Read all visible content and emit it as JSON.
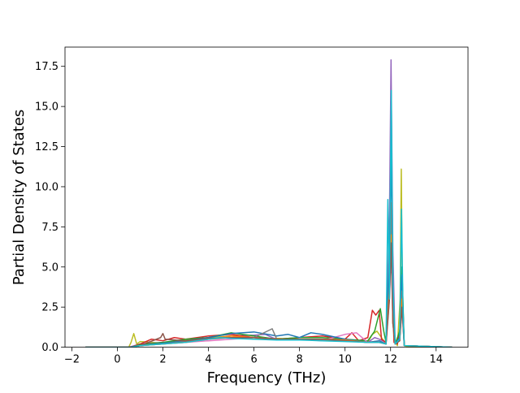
{
  "chart_data": {
    "type": "line",
    "title": "",
    "xlabel": "Frequency (THz)",
    "ylabel": "Partial Density of States",
    "xlim": [
      -2.3,
      15.4
    ],
    "ylim": [
      0,
      18.7
    ],
    "xticks": [
      -2,
      0,
      2,
      4,
      6,
      8,
      10,
      12,
      14
    ],
    "xtick_labels": [
      "−2",
      "0",
      "2",
      "4",
      "6",
      "8",
      "10",
      "12",
      "14"
    ],
    "yticks": [
      0,
      2.5,
      5,
      7.5,
      10,
      12.5,
      15,
      17.5
    ],
    "ytick_labels": [
      "0.0",
      "2.5",
      "5.0",
      "7.5",
      "10.0",
      "12.5",
      "15.0",
      "17.5"
    ],
    "grid": false,
    "legend": "none",
    "x_range_plotted": [
      -1.4,
      14.7
    ],
    "series": [
      {
        "color": "#bcbd22",
        "x": [
          -1.4,
          0.5,
          0.6,
          0.72,
          0.85,
          1.0,
          1.5,
          2.0,
          3.0,
          4.0,
          5.0,
          6.0,
          7.0,
          8.0,
          9.0,
          10.0,
          11.0,
          11.2,
          11.4,
          11.8,
          11.95,
          12.05,
          12.15,
          12.3,
          12.42,
          12.47,
          12.52,
          12.6,
          12.8,
          14.7
        ],
        "y": [
          0,
          0,
          0.3,
          0.85,
          0.2,
          0.35,
          0.3,
          0.25,
          0.45,
          0.6,
          0.7,
          0.5,
          0.55,
          0.5,
          0.45,
          0.4,
          0.3,
          0.8,
          1.0,
          0.2,
          4.5,
          5.0,
          0.4,
          0.1,
          3.0,
          11.1,
          3.0,
          0.1,
          0,
          0
        ]
      },
      {
        "color": "#9467bd",
        "x": [
          -1.4,
          0.5,
          1.0,
          2.0,
          3.0,
          4.0,
          5.0,
          6.0,
          6.5,
          6.8,
          7.0,
          8.0,
          9.0,
          10.0,
          11.0,
          11.3,
          11.5,
          11.8,
          11.95,
          12.02,
          12.1,
          12.2,
          12.4,
          12.5,
          12.6,
          14.7
        ],
        "y": [
          0,
          0,
          0.2,
          0.3,
          0.4,
          0.5,
          0.7,
          0.75,
          0.8,
          0.6,
          0.5,
          0.45,
          0.5,
          0.4,
          0.3,
          0.6,
          0.5,
          0.3,
          8.0,
          17.9,
          6.0,
          0.3,
          0.5,
          2.5,
          0.1,
          0
        ]
      },
      {
        "color": "#d62728",
        "x": [
          -1.4,
          0.6,
          1.0,
          1.5,
          2.0,
          2.5,
          3.0,
          4.0,
          5.0,
          6.0,
          7.0,
          8.0,
          9.0,
          10.0,
          10.3,
          10.6,
          11.0,
          11.2,
          11.35,
          11.5,
          11.6,
          11.8,
          11.95,
          12.05,
          12.15,
          12.3,
          12.45,
          12.5,
          12.6,
          14.7
        ],
        "y": [
          0,
          0,
          0.2,
          0.5,
          0.4,
          0.6,
          0.5,
          0.7,
          0.8,
          0.6,
          0.5,
          0.6,
          0.7,
          0.5,
          0.9,
          0.4,
          0.6,
          2.3,
          2.0,
          2.3,
          0.5,
          0.3,
          4.5,
          4.8,
          0.3,
          0.2,
          1.5,
          4.0,
          0.1,
          0
        ]
      },
      {
        "color": "#2ca02c",
        "x": [
          -1.4,
          0.6,
          1.0,
          2.0,
          3.0,
          4.0,
          5.0,
          6.0,
          7.0,
          8.0,
          9.0,
          10.0,
          11.0,
          11.3,
          11.55,
          11.7,
          11.8,
          11.95,
          12.03,
          12.1,
          12.2,
          12.4,
          12.5,
          12.6,
          14.7
        ],
        "y": [
          0,
          0,
          0.15,
          0.3,
          0.5,
          0.6,
          0.9,
          0.7,
          0.5,
          0.6,
          0.6,
          0.5,
          0.4,
          1.0,
          2.4,
          1.0,
          0.3,
          5.0,
          8.0,
          2.0,
          0.2,
          1.0,
          5.0,
          0.1,
          0
        ]
      },
      {
        "color": "#e377c2",
        "x": [
          -1.4,
          0.6,
          1.0,
          2.0,
          3.0,
          4.0,
          5.0,
          6.0,
          7.0,
          8.0,
          9.0,
          9.5,
          10.0,
          10.5,
          11.0,
          11.5,
          11.8,
          11.95,
          12.03,
          12.1,
          12.2,
          12.4,
          12.5,
          12.6,
          14.7
        ],
        "y": [
          0,
          0,
          0.1,
          0.2,
          0.3,
          0.4,
          0.5,
          0.6,
          0.5,
          0.5,
          0.4,
          0.6,
          0.8,
          0.9,
          0.3,
          0.4,
          0.2,
          3.0,
          6.0,
          1.5,
          0.2,
          0.5,
          3.0,
          0.1,
          0
        ]
      },
      {
        "color": "#1f77b4",
        "x": [
          -1.4,
          0.6,
          1.0,
          2.0,
          3.0,
          4.0,
          5.0,
          6.0,
          7.0,
          7.5,
          8.0,
          8.5,
          9.0,
          10.0,
          11.0,
          11.5,
          11.8,
          11.95,
          12.03,
          12.1,
          12.2,
          12.4,
          12.5,
          12.6,
          14.7
        ],
        "y": [
          0,
          0,
          0.1,
          0.25,
          0.4,
          0.6,
          0.85,
          0.95,
          0.7,
          0.8,
          0.6,
          0.9,
          0.8,
          0.5,
          0.3,
          0.4,
          0.2,
          6.0,
          12.0,
          3.0,
          0.2,
          0.6,
          4.5,
          0.1,
          0
        ]
      },
      {
        "color": "#7f7f7f",
        "x": [
          -1.4,
          0.6,
          1.0,
          2.0,
          3.0,
          4.0,
          5.0,
          6.0,
          6.8,
          7.0,
          8.0,
          9.0,
          10.0,
          11.0,
          11.5,
          11.8,
          11.95,
          12.03,
          12.1,
          12.2,
          12.4,
          12.5,
          12.6,
          14.7
        ],
        "y": [
          0,
          0,
          0.1,
          0.2,
          0.35,
          0.5,
          0.6,
          0.6,
          1.15,
          0.5,
          0.45,
          0.5,
          0.4,
          0.3,
          0.3,
          0.2,
          4.0,
          9.0,
          2.0,
          0.2,
          0.4,
          3.5,
          0.1,
          0
        ]
      },
      {
        "color": "#ff7f0e",
        "x": [
          -1.4,
          0.6,
          1.0,
          2.0,
          3.0,
          4.0,
          5.0,
          6.0,
          7.0,
          8.0,
          9.0,
          10.0,
          11.0,
          11.5,
          11.8,
          11.95,
          12.03,
          12.1,
          12.2,
          12.4,
          12.5,
          12.6,
          14.7
        ],
        "y": [
          0,
          0,
          0.1,
          0.2,
          0.3,
          0.5,
          0.7,
          0.6,
          0.5,
          0.5,
          0.5,
          0.45,
          0.3,
          0.3,
          0.2,
          3.5,
          7.0,
          1.5,
          0.2,
          0.4,
          3.0,
          0.1,
          0
        ]
      },
      {
        "color": "#8c564b",
        "x": [
          -1.4,
          0.6,
          1.0,
          1.9,
          2.0,
          2.1,
          3.0,
          4.0,
          5.0,
          6.0,
          7.0,
          8.0,
          9.0,
          10.0,
          11.0,
          11.5,
          11.8,
          11.95,
          12.03,
          12.1,
          12.2,
          12.4,
          12.5,
          12.6,
          14.7
        ],
        "y": [
          0,
          0,
          0.1,
          0.6,
          0.85,
          0.5,
          0.4,
          0.55,
          0.6,
          0.6,
          0.5,
          0.5,
          0.5,
          0.4,
          0.3,
          0.3,
          0.2,
          3.0,
          6.5,
          1.5,
          0.2,
          0.4,
          2.5,
          0.1,
          0
        ]
      },
      {
        "color": "#17becf",
        "x": [
          -1.4,
          0.6,
          1.0,
          2.0,
          3.0,
          4.0,
          4.5,
          5.0,
          6.0,
          7.0,
          8.0,
          9.0,
          10.0,
          11.0,
          11.5,
          11.8,
          11.88,
          11.95,
          12.03,
          12.1,
          12.2,
          12.4,
          12.48,
          12.55,
          12.6,
          14.7
        ],
        "y": [
          0,
          0,
          0.1,
          0.2,
          0.3,
          0.5,
          0.6,
          0.55,
          0.5,
          0.45,
          0.45,
          0.4,
          0.35,
          0.3,
          0.3,
          0.2,
          9.2,
          3.0,
          16.0,
          4.0,
          0.2,
          0.5,
          8.6,
          2.0,
          0.1,
          0
        ]
      }
    ]
  }
}
